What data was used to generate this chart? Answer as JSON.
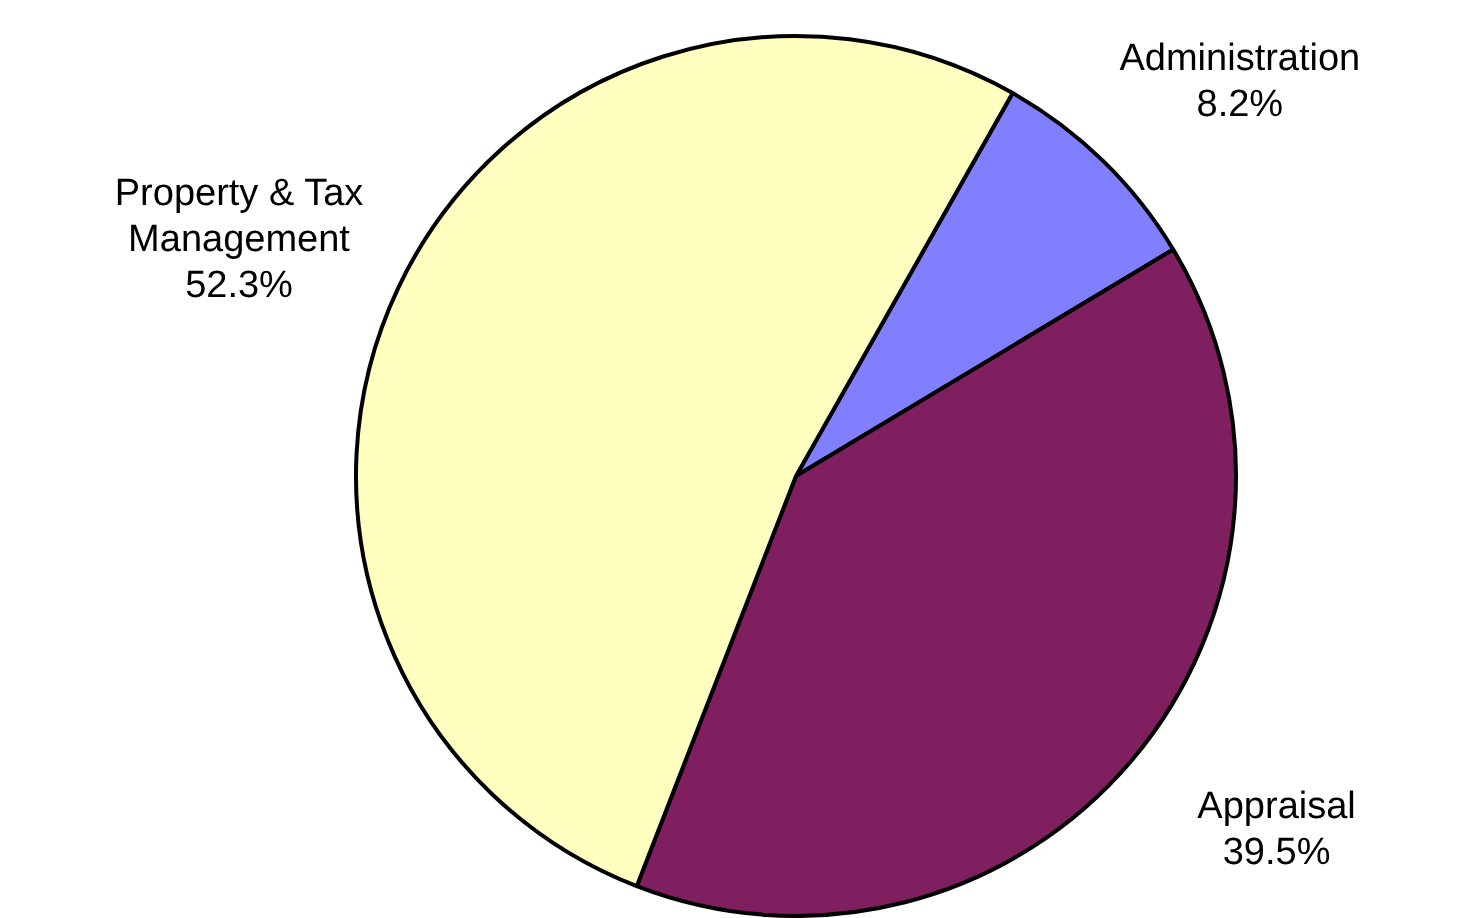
{
  "chart_data": {
    "type": "pie",
    "categories": [
      "Administration",
      "Appraisal",
      "Property & Tax Management"
    ],
    "values": [
      8.2,
      39.5,
      52.3
    ],
    "colors": [
      "#8080ff",
      "#7f1f5f",
      "#ffffc0"
    ],
    "value_labels": [
      "8.2%",
      "39.5%",
      "52.3%"
    ]
  }
}
